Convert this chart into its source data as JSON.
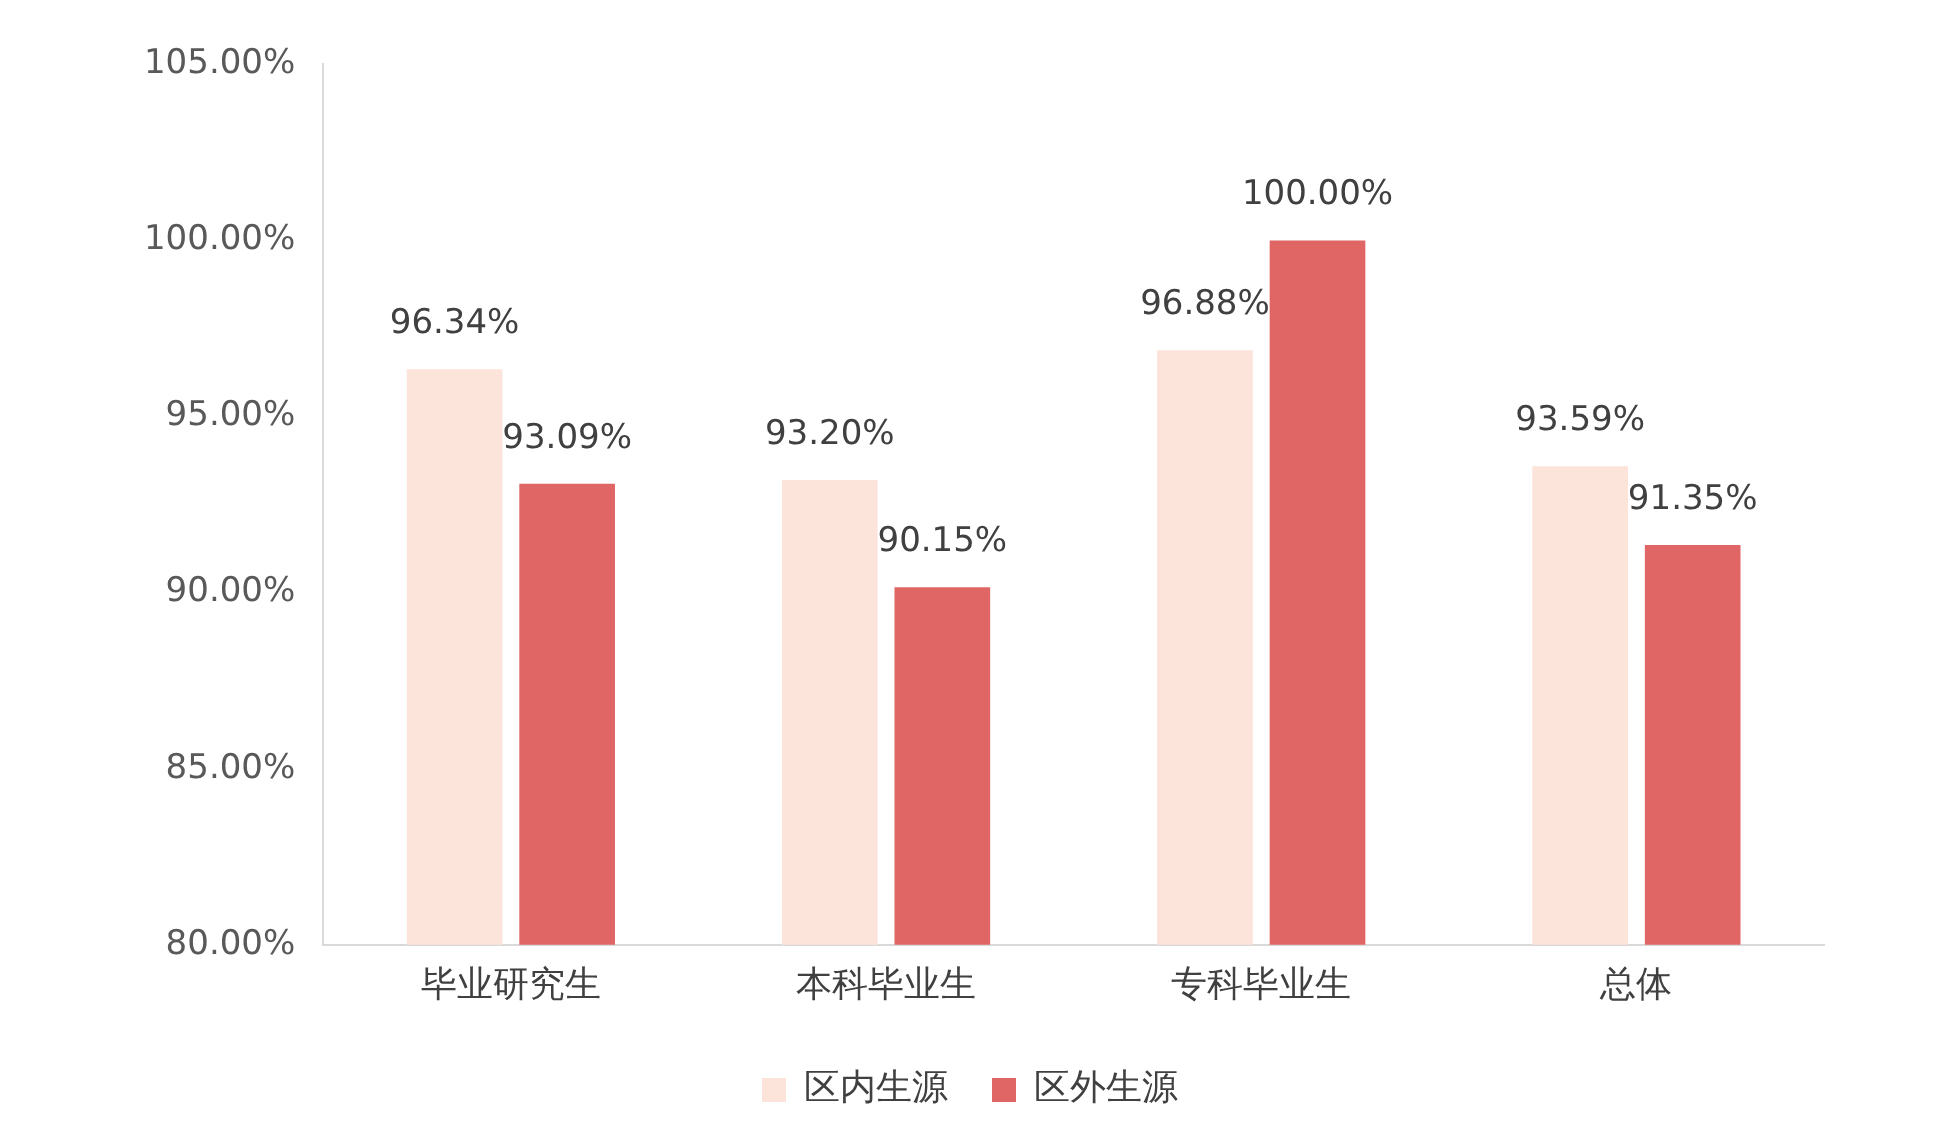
{
  "chart_data": {
    "type": "bar",
    "categories": [
      "毕业研究生",
      "本科毕业生",
      "专科毕业生",
      "总体"
    ],
    "series": [
      {
        "name": "区内生源",
        "color": "#fce4da",
        "values": [
          96.34,
          93.2,
          96.88,
          93.59
        ],
        "value_labels": [
          "96.34%",
          "93.20%",
          "96.88%",
          "93.59%"
        ]
      },
      {
        "name": "区外生源",
        "color": "#e06666",
        "values": [
          93.09,
          90.15,
          100,
          91.35
        ],
        "value_labels": [
          "93.09%",
          "90.15%",
          "100.00%",
          "91.35%"
        ]
      }
    ],
    "ylim": [
      80,
      105
    ],
    "yticks": [
      {
        "value": 80,
        "label": "80.00%"
      },
      {
        "value": 85,
        "label": "85.00%"
      },
      {
        "value": 90,
        "label": "90.00%"
      },
      {
        "value": 95,
        "label": "95.00%"
      },
      {
        "value": 100,
        "label": "100.00%"
      },
      {
        "value": 105,
        "label": "105.00%"
      }
    ],
    "grid": false,
    "legend": "bottom"
  }
}
